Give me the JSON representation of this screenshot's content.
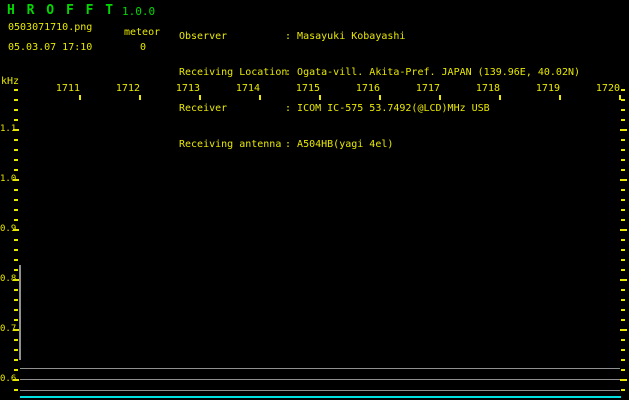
{
  "header": {
    "app_title": "H R O F F T",
    "app_version": "1.0.0",
    "filename": "0503071710.png",
    "mode": "meteor",
    "datetime": "05.03.07 17:10",
    "count": "0",
    "info": [
      {
        "label": "Observer",
        "value": "Masayuki Kobayashi"
      },
      {
        "label": "Receiving Location",
        "value": "Ogata-vill. Akita-Pref. JAPAN (139.96E, 40.02N)"
      },
      {
        "label": "Receiver",
        "value": "ICOM IC-575 53.7492(@LCD)MHz USB"
      },
      {
        "label": "Receiving antenna",
        "value": "A504HB(yagi 4el)"
      }
    ]
  },
  "colors": {
    "background": "#000000",
    "text_yellow": "#e8e800",
    "title_green": "#00d800",
    "signal_gray": "#909090",
    "signal_cyan": "#00e0e0"
  },
  "chart_data": {
    "type": "heatmap",
    "subtype": "radio-meteor-spectrogram",
    "title": "",
    "x": {
      "unit": "time (HHMM)",
      "start": "1710",
      "end": "1720",
      "ticks": [
        "1711",
        "1712",
        "1713",
        "1714",
        "1715",
        "1716",
        "1717",
        "1718",
        "1719",
        "1720"
      ]
    },
    "y": {
      "unit": "kHz",
      "ticks": [
        "1.1",
        "1.0",
        "0.9",
        "0.8",
        "0.7",
        "0.6"
      ],
      "minor_step": 0.02,
      "range": [
        0.58,
        1.18
      ]
    },
    "grid": false,
    "legend": false,
    "signals": [
      {
        "kind": "carrier-line",
        "freq_khz": 0.623,
        "time_span": "full",
        "strength": "moderate",
        "color": "#909090"
      },
      {
        "kind": "carrier-line",
        "freq_khz": 0.601,
        "time_span": "full",
        "strength": "moderate",
        "color": "#909090"
      },
      {
        "kind": "carrier-line",
        "freq_khz": 0.579,
        "time_span": "full",
        "strength": "moderate",
        "color": "#909090"
      },
      {
        "kind": "carrier-line",
        "freq_khz": 0.566,
        "time_span": "full",
        "strength": "strong",
        "color": "#00e0e0"
      },
      {
        "kind": "startup-artifact",
        "time": "17:10:00",
        "freq_khz_from": 0.64,
        "freq_khz_to": 0.83,
        "strength": "moderate",
        "color": "#909090"
      }
    ]
  }
}
